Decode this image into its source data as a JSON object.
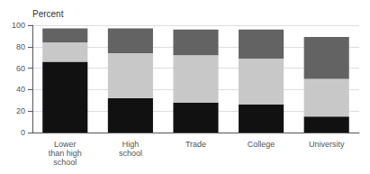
{
  "chart_data": {
    "type": "bar",
    "stacked": true,
    "ylabel": "Percent",
    "categories": [
      "Lower\nthan high\nschool",
      "High\nschool",
      "Trade",
      "College",
      "University"
    ],
    "series": [
      {
        "color": "#111111",
        "values": [
          66,
          32,
          28,
          26,
          15
        ]
      },
      {
        "color": "#c8c8c8",
        "values": [
          18,
          42,
          44,
          43,
          35
        ]
      },
      {
        "color": "#636363",
        "values": [
          13,
          23,
          24,
          27,
          39
        ]
      }
    ],
    "ylim": [
      0,
      100
    ],
    "yticks": [
      0,
      20,
      40,
      60,
      80,
      100
    ],
    "grid": true
  }
}
